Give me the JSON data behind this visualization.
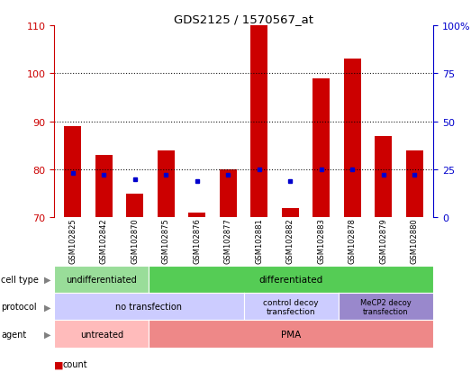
{
  "title": "GDS2125 / 1570567_at",
  "samples": [
    "GSM102825",
    "GSM102842",
    "GSM102870",
    "GSM102875",
    "GSM102876",
    "GSM102877",
    "GSM102881",
    "GSM102882",
    "GSM102883",
    "GSM102878",
    "GSM102879",
    "GSM102880"
  ],
  "counts": [
    89,
    83,
    75,
    84,
    71,
    80,
    110,
    72,
    99,
    103,
    87,
    84
  ],
  "percentile_ranks": [
    23,
    22,
    20,
    22,
    19,
    22,
    25,
    19,
    25,
    25,
    22,
    22
  ],
  "ylim_left": [
    70,
    110
  ],
  "ylim_right": [
    0,
    100
  ],
  "yticks_left": [
    70,
    80,
    90,
    100,
    110
  ],
  "yticks_right": [
    0,
    25,
    50,
    75,
    100
  ],
  "yticklabels_right": [
    "0",
    "25",
    "50",
    "75",
    "100%"
  ],
  "bar_color": "#CC0000",
  "dot_color": "#0000CC",
  "bar_bottom": 70,
  "cell_type_color_1": "#99DD99",
  "cell_type_color_2": "#55CC55",
  "protocol_color_1": "#CCCCFF",
  "protocol_color_2": "#9988CC",
  "agent_color_1": "#FFBBBB",
  "agent_color_2": "#EE8888",
  "row_labels": [
    "cell type",
    "protocol",
    "agent"
  ],
  "bg_color": "#FFFFFF",
  "axis_color_left": "#CC0000",
  "axis_color_right": "#0000CC",
  "xticklabel_bg": "#CCCCCC"
}
